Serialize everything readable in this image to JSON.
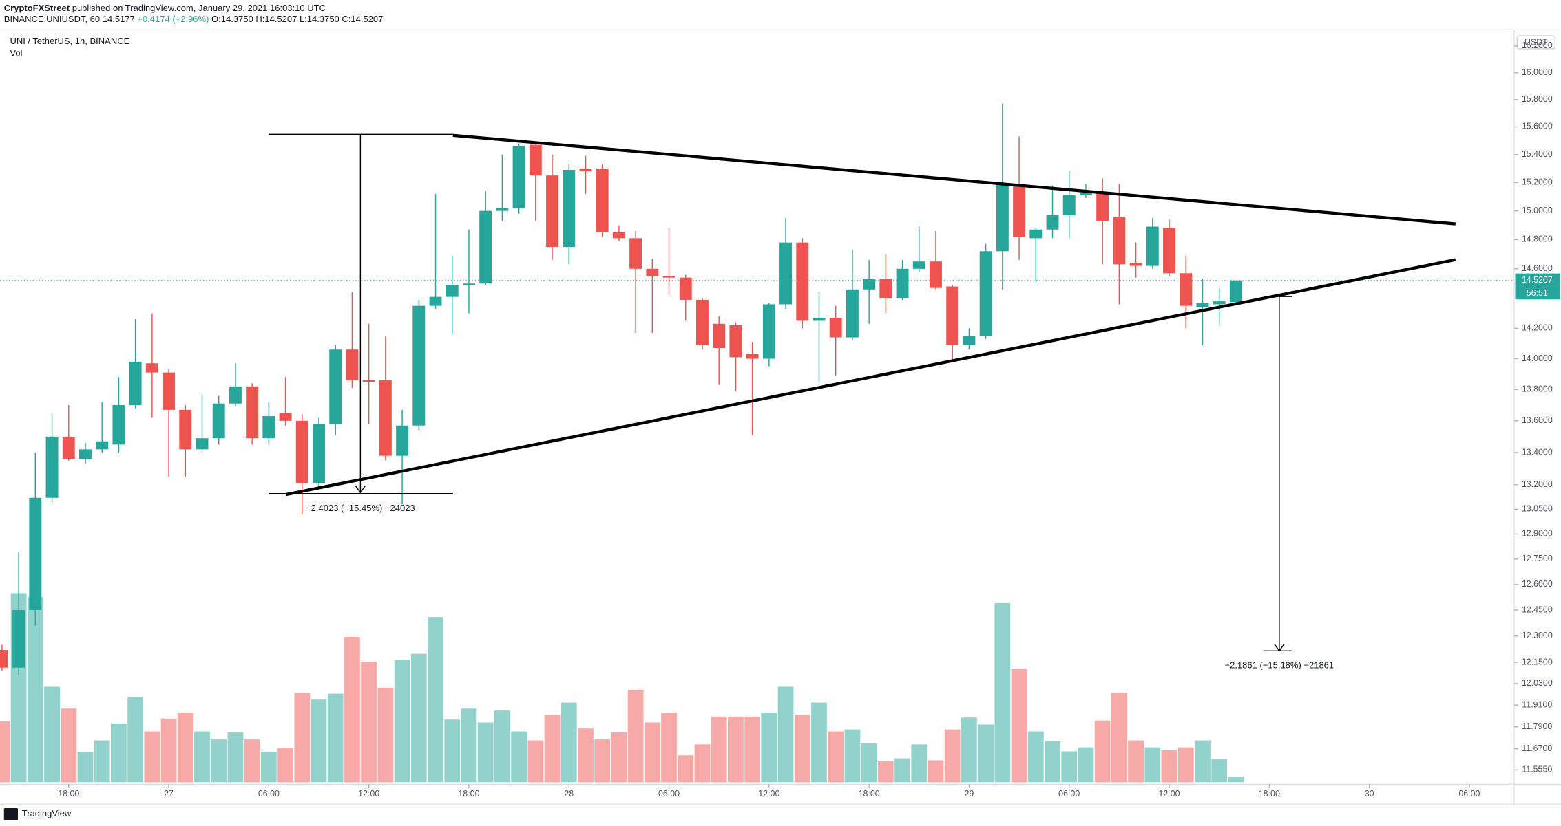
{
  "header": {
    "author": "CryptoFXStreet",
    "published": "published on TradingView.com, January 29, 2021 16:03:10 UTC",
    "quote": [
      "BINANCE:UNIUSDT, 60",
      "14.5177",
      "+0.4174 (+2.96%)",
      "O:",
      "14.3750",
      "H:",
      "14.5207",
      "L:",
      "14.3750",
      "C:",
      "14.5207"
    ]
  },
  "chart_data": {
    "type": "candlestick",
    "title": "UNI / TetherUS, 1h, BINANCE",
    "volume_label": "Vol",
    "currency": "USDT",
    "countdown": "56:51",
    "up_color": "#26a69a",
    "down_color": "#ef5350",
    "log": true,
    "grid": false,
    "annotations": [
      "−2.4023 (−15.45%) −24023",
      "−2.1861 (−15.18%) −21861"
    ],
    "xlim": [
      13.88,
      104.69
    ],
    "ylim": [
      11.478,
      16.3
    ],
    "xticks": [
      {
        "value": 18,
        "label": "18:00"
      },
      {
        "value": 24,
        "label": "27"
      },
      {
        "value": 30,
        "label": "06:00"
      },
      {
        "value": 36,
        "label": "12:00"
      },
      {
        "value": 42,
        "label": "18:00"
      },
      {
        "value": 48,
        "label": "28"
      },
      {
        "value": 54,
        "label": "06:00"
      },
      {
        "value": 60,
        "label": "12:00"
      },
      {
        "value": 66,
        "label": "18:00"
      },
      {
        "value": 72,
        "label": "29"
      },
      {
        "value": 78,
        "label": "06:00"
      },
      {
        "value": 84,
        "label": "12:00"
      },
      {
        "value": 90,
        "label": "18:00"
      },
      {
        "value": 96,
        "label": "30"
      },
      {
        "value": 102,
        "label": "06:00"
      }
    ],
    "yticks": [
      {
        "value": 16.2,
        "label": "16.2000"
      },
      {
        "value": 16,
        "label": "16.0000"
      },
      {
        "value": 15.8,
        "label": "15.8000"
      },
      {
        "value": 15.6,
        "label": "15.6000"
      },
      {
        "value": 15.4,
        "label": "15.4000"
      },
      {
        "value": 15.2,
        "label": "15.2000"
      },
      {
        "value": 15,
        "label": "15.0000"
      },
      {
        "value": 14.8,
        "label": "14.8000"
      },
      {
        "value": 14.6,
        "label": "14.6000"
      },
      {
        "value": 14.2,
        "label": "14.2000"
      },
      {
        "value": 14,
        "label": "14.0000"
      },
      {
        "value": 13.8,
        "label": "13.8000"
      },
      {
        "value": 13.6,
        "label": "13.6000"
      },
      {
        "value": 13.4,
        "label": "13.4000"
      },
      {
        "value": 13.2,
        "label": "13.2000"
      },
      {
        "value": 13.05,
        "label": "13.0500"
      },
      {
        "value": 12.9,
        "label": "12.9000"
      },
      {
        "value": 12.75,
        "label": "12.7500"
      },
      {
        "value": 12.6,
        "label": "12.6000"
      },
      {
        "value": 12.45,
        "label": "12.4500"
      },
      {
        "value": 12.3,
        "label": "12.3000"
      },
      {
        "value": 12.15,
        "label": "12.1500"
      },
      {
        "value": 12.03,
        "label": "12.0300"
      },
      {
        "value": 11.91,
        "label": "11.9100"
      },
      {
        "value": 11.79,
        "label": "11.7900"
      },
      {
        "value": 11.67,
        "label": "11.6700"
      },
      {
        "value": 11.555,
        "label": "11.5550"
      }
    ],
    "x": [
      14,
      15,
      16,
      17,
      18,
      19,
      20,
      21,
      22,
      23,
      24,
      25,
      26,
      27,
      28,
      29,
      30,
      31,
      32,
      33,
      34,
      35,
      36,
      37,
      38,
      39,
      40,
      41,
      42,
      43,
      44,
      45,
      46,
      47,
      48,
      49,
      50,
      51,
      52,
      53,
      54,
      55,
      56,
      57,
      58,
      59,
      60,
      61,
      62,
      63,
      64,
      65,
      66,
      67,
      68,
      69,
      70,
      71,
      72,
      73,
      74,
      75,
      76,
      77,
      78,
      79,
      80,
      81,
      82,
      83,
      84,
      85,
      86,
      87,
      88
    ],
    "open": [
      12.22,
      12.12,
      12.45,
      13.12,
      13.5,
      13.36,
      13.42,
      13.45,
      13.7,
      13.97,
      13.91,
      13.67,
      13.42,
      13.49,
      13.71,
      13.82,
      13.49,
      13.65,
      13.6,
      13.21,
      13.58,
      14.06,
      13.86,
      13.86,
      13.38,
      13.57,
      14.35,
      14.41,
      14.49,
      14.5,
      15.0,
      15.02,
      15.47,
      15.25,
      14.75,
      15.3,
      15.3,
      14.85,
      14.81,
      14.6,
      14.55,
      14.54,
      14.39,
      14.23,
      14.22,
      14.03,
      14.0,
      14.36,
      14.78,
      14.25,
      14.27,
      14.14,
      14.46,
      14.53,
      14.4,
      14.6,
      14.65,
      14.48,
      14.09,
      14.15,
      14.72,
      15.19,
      14.81,
      14.87,
      14.97,
      15.11,
      15.13,
      14.96,
      14.64,
      14.62,
      14.88,
      14.57,
      14.34,
      14.36,
      14.375
    ],
    "high": [
      12.25,
      12.79,
      13.4,
      13.65,
      13.7,
      13.46,
      13.72,
      13.88,
      14.26,
      14.3,
      13.93,
      13.7,
      13.77,
      13.76,
      13.97,
      13.84,
      13.72,
      13.88,
      13.64,
      13.62,
      14.09,
      14.44,
      14.23,
      14.15,
      13.67,
      14.39,
      15.12,
      14.69,
      14.87,
      15.14,
      15.4,
      15.48,
      15.48,
      15.4,
      15.33,
      15.39,
      15.33,
      14.9,
      14.86,
      14.67,
      14.88,
      14.56,
      14.4,
      14.28,
      14.24,
      14.11,
      14.37,
      14.95,
      14.81,
      14.44,
      14.35,
      14.73,
      14.66,
      14.7,
      14.66,
      14.89,
      14.86,
      14.49,
      14.2,
      14.77,
      15.77,
      15.53,
      14.88,
      15.18,
      15.28,
      15.19,
      15.23,
      15.19,
      14.78,
      14.95,
      14.94,
      14.69,
      14.53,
      14.47,
      14.5207
    ],
    "low": [
      12.1,
      12.08,
      12.36,
      13.09,
      13.35,
      13.33,
      13.4,
      13.4,
      13.68,
      13.62,
      13.25,
      13.25,
      13.4,
      13.45,
      13.69,
      13.45,
      13.45,
      13.57,
      13.02,
      13.17,
      13.51,
      13.81,
      13.58,
      13.35,
      13.08,
      13.54,
      14.33,
      14.16,
      14.3,
      14.49,
      14.93,
      14.98,
      14.93,
      14.66,
      14.63,
      15.12,
      14.82,
      14.79,
      14.17,
      14.17,
      14.42,
      14.25,
      14.06,
      13.83,
      13.79,
      13.51,
      13.95,
      14.33,
      14.2,
      13.84,
      13.89,
      14.12,
      14.23,
      14.3,
      14.39,
      14.58,
      14.46,
      13.98,
      14.06,
      14.13,
      14.46,
      14.66,
      14.51,
      14.81,
      14.81,
      15.09,
      14.63,
      14.36,
      14.54,
      14.6,
      14.55,
      14.2,
      14.09,
      14.22,
      14.375
    ],
    "close": [
      12.12,
      12.45,
      13.12,
      13.5,
      13.36,
      13.42,
      13.47,
      13.7,
      13.98,
      13.91,
      13.67,
      13.42,
      13.49,
      13.71,
      13.82,
      13.49,
      13.63,
      13.6,
      13.21,
      13.58,
      14.06,
      13.86,
      13.85,
      13.38,
      13.57,
      14.35,
      14.41,
      14.49,
      14.5,
      15.0,
      15.02,
      15.46,
      15.25,
      14.75,
      15.29,
      15.28,
      14.85,
      14.81,
      14.6,
      14.55,
      14.54,
      14.39,
      14.09,
      14.07,
      14.01,
      14.0,
      14.36,
      14.78,
      14.25,
      14.27,
      14.14,
      14.46,
      14.53,
      14.4,
      14.6,
      14.65,
      14.47,
      14.09,
      14.15,
      14.72,
      15.19,
      14.82,
      14.87,
      14.97,
      15.11,
      15.13,
      14.93,
      14.63,
      14.62,
      14.89,
      14.57,
      14.35,
      14.37,
      14.38,
      14.5207
    ],
    "volume": [
      61,
      190,
      186,
      96,
      74,
      30,
      42,
      59,
      86,
      51,
      64,
      70,
      51,
      43,
      50,
      43,
      30,
      34,
      90,
      83,
      89,
      146,
      121,
      95,
      123,
      129,
      166,
      63,
      74,
      60,
      72,
      51,
      42,
      68,
      80,
      54,
      43,
      50,
      93,
      60,
      70,
      27,
      38,
      66,
      66,
      66,
      70,
      96,
      68,
      80,
      51,
      53,
      39,
      21,
      24,
      38,
      22,
      53,
      65,
      58,
      180,
      114,
      51,
      41,
      31,
      35,
      62,
      90,
      42,
      35,
      32,
      35,
      42,
      23,
      5
    ]
  },
  "footer": {
    "brand": "TradingView"
  }
}
